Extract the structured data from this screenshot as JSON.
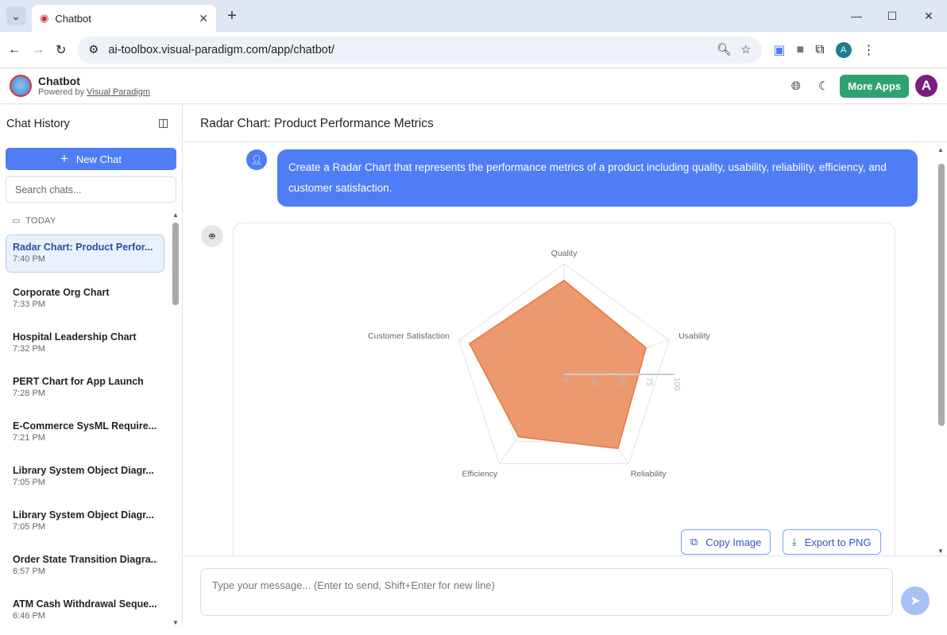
{
  "browser": {
    "tab_title": "Chatbot",
    "url": "ai-toolbox.visual-paradigm.com/app/chatbot/",
    "profile_initial": "A"
  },
  "app": {
    "name": "Chatbot",
    "powered_prefix": "Powered by ",
    "powered_link": "Visual Paradigm",
    "more_apps": "More Apps",
    "avatar_initial": "A"
  },
  "sidebar": {
    "title": "Chat History",
    "new_chat": "New Chat",
    "search_placeholder": "Search chats...",
    "group": "TODAY",
    "items": [
      {
        "title": "Radar Chart: Product Perfor...",
        "time": "7:40 PM"
      },
      {
        "title": "Corporate Org Chart",
        "time": "7:33 PM"
      },
      {
        "title": "Hospital Leadership Chart",
        "time": "7:32 PM"
      },
      {
        "title": "PERT Chart for App Launch",
        "time": "7:28 PM"
      },
      {
        "title": "E-Commerce SysML Require...",
        "time": "7:21 PM"
      },
      {
        "title": "Library System Object Diagr...",
        "time": "7:05 PM"
      },
      {
        "title": "Library System Object Diagr...",
        "time": "7:05 PM"
      },
      {
        "title": "Order State Transition Diagra...",
        "time": "6:57 PM"
      },
      {
        "title": "ATM Cash Withdrawal Seque...",
        "time": "6:46 PM"
      }
    ]
  },
  "main": {
    "title": "Radar Chart: Product Performance Metrics",
    "user_message": "Create a Radar Chart that represents the performance metrics of a product including quality, usability, reliability, efficiency, and customer satisfaction.",
    "copy_image": "Copy Image",
    "export_png": "Export to PNG",
    "input_placeholder": "Type your message... (Enter to send, Shift+Enter for new line)"
  },
  "chart_data": {
    "type": "radar",
    "categories": [
      "Quality",
      "Usability",
      "Reliability",
      "Efficiency",
      "Customer Satisfaction"
    ],
    "values": [
      85,
      78,
      83,
      70,
      90
    ],
    "rlim": [
      0,
      100
    ],
    "ticks": [
      "0",
      "25",
      "50",
      "75",
      "100"
    ],
    "color": "#e8743b",
    "fill": "#eb9468"
  }
}
